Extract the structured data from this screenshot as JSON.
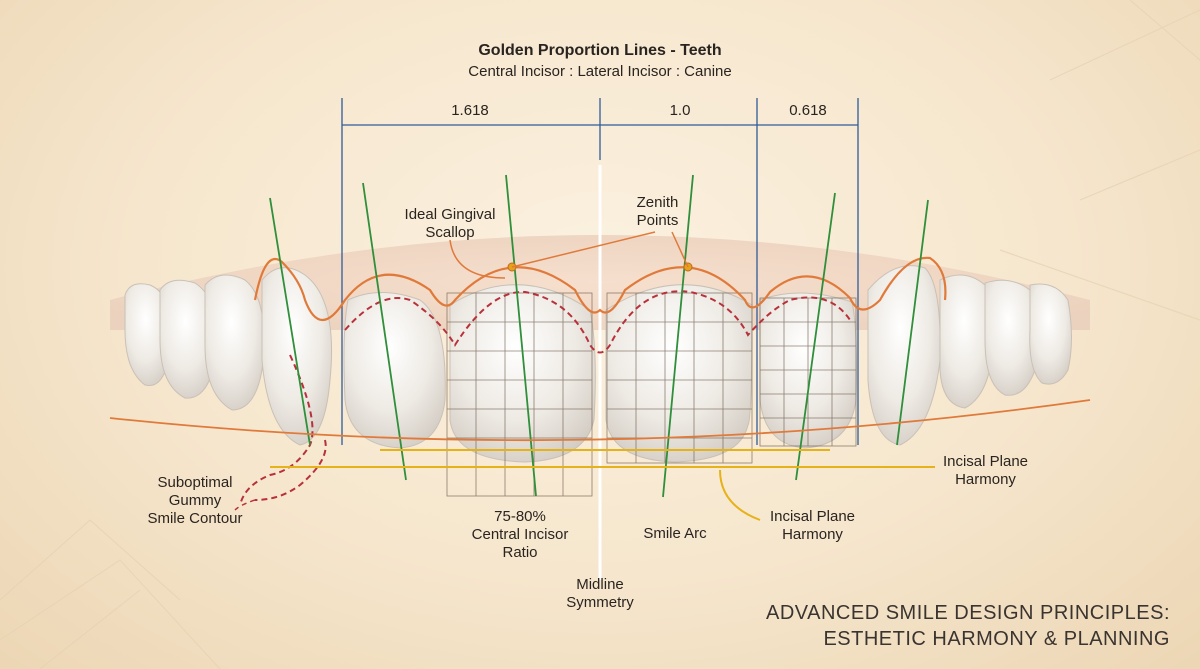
{
  "title": "Golden Proportion Lines - Teeth",
  "subtitle": "Central Incisor : Lateral Incisor : Canine",
  "ratios": [
    "1.618",
    "1.0",
    "0.618"
  ],
  "labels": {
    "gingival": "Ideal Gingival\nScallop",
    "zenith": "Zenith\nPoints",
    "gummy": "Suboptimal\nGummy\nSmile Contour",
    "ratio": "75-80%\nCentral Incisor\nRatio",
    "smile_arc": "Smile Arc",
    "incisal_center": "Incisal Plane\nHarmony",
    "incisal_right": "Incisal Plane\nHarmony",
    "midline": "Midline\nSymmetry"
  },
  "footer": {
    "line1": "ADVANCED SMILE DESIGN PRINCIPLES:",
    "line2": "ESTHETIC HARMONY & PLANNING"
  },
  "colors": {
    "gingival_line": "#e07a3a",
    "dashed_contour": "#b8313a",
    "axis_lines": "#2f8f3a",
    "incisal_line": "#e6b21a",
    "bracket_lines": "#2f5c9a",
    "grid": "#6b5a4a",
    "tooth": "#f4f1ec",
    "gum": "#f0d6c4"
  }
}
